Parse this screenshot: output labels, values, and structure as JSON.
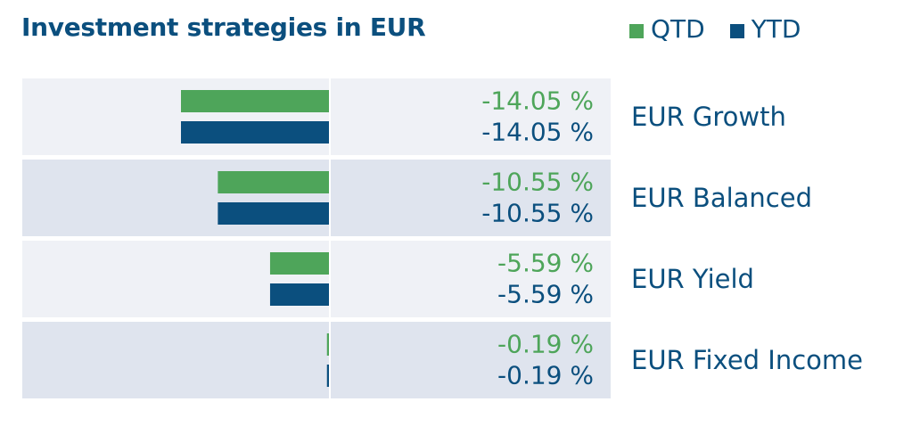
{
  "title": "Investment strategies in EUR",
  "legend": [
    {
      "label": "QTD",
      "color": "#4ea55a"
    },
    {
      "label": "YTD",
      "color": "#0b4f7e"
    }
  ],
  "colors": {
    "qtd": "#4ea55a",
    "ytd": "#0b4f7e",
    "row_light": "#eff1f6",
    "row_dark": "#dfe4ee",
    "text_dark": "#0b4f7e"
  },
  "chart_data": {
    "type": "bar",
    "title": "Investment strategies in EUR",
    "orientation": "horizontal",
    "categories": [
      "EUR Growth",
      "EUR Balanced",
      "EUR Yield",
      "EUR Fixed Income"
    ],
    "series": [
      {
        "name": "QTD",
        "values": [
          -14.05,
          -10.55,
          -5.59,
          -0.19
        ]
      },
      {
        "name": "YTD",
        "values": [
          -14.05,
          -10.55,
          -5.59,
          -0.19
        ]
      }
    ],
    "value_labels": {
      "QTD": [
        "-14.05 %",
        "-10.55 %",
        "-5.59 %",
        "-0.19 %"
      ],
      "YTD": [
        "-14.05 %",
        "-10.55 %",
        "-5.59 %",
        "-0.19 %"
      ]
    },
    "xlim": [
      -14.05,
      0
    ],
    "legend_position": "top-right",
    "grid": false
  }
}
